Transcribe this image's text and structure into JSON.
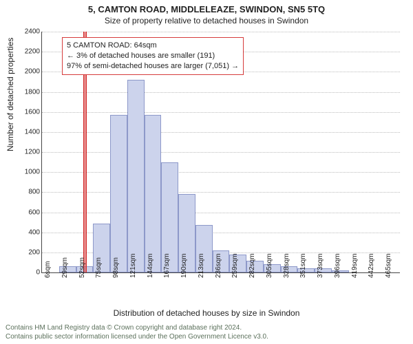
{
  "header": {
    "title": "5, CAMTON ROAD, MIDDLELEAZE, SWINDON, SN5 5TQ",
    "subtitle": "Size of property relative to detached houses in Swindon"
  },
  "axes": {
    "ylabel": "Number of detached properties",
    "xlabel": "Distribution of detached houses by size in Swindon",
    "ymax": 2400,
    "ytick_step": 200,
    "yticks": [
      0,
      200,
      400,
      600,
      800,
      1000,
      1200,
      1400,
      1600,
      1800,
      2000,
      2200,
      2400
    ],
    "x_start": 6,
    "x_step": 23,
    "x_count": 21,
    "x_unit": "sqm",
    "xticks": [
      "6sqm",
      "29sqm",
      "52sqm",
      "75sqm",
      "98sqm",
      "121sqm",
      "144sqm",
      "167sqm",
      "190sqm",
      "213sqm",
      "236sqm",
      "259sqm",
      "282sqm",
      "305sqm",
      "328sqm",
      "351sqm",
      "373sqm",
      "396sqm",
      "419sqm",
      "442sqm",
      "465sqm"
    ]
  },
  "chart": {
    "type": "histogram",
    "bar_fill": "#ccd3ec",
    "bar_border": "#8d98c9",
    "grid_color": "#bbbbbb",
    "axis_color": "#444444",
    "background": "#ffffff",
    "values": [
      0,
      60,
      60,
      490,
      1570,
      1920,
      1570,
      1100,
      780,
      470,
      220,
      180,
      120,
      80,
      60,
      40,
      40,
      20,
      0,
      0,
      0
    ],
    "marker": {
      "value_sqm": 64,
      "color": "#d63b3b"
    }
  },
  "infobox": {
    "line1": "5 CAMTON ROAD: 64sqm",
    "line2": "← 3% of detached houses are smaller (191)",
    "line3": "97% of semi-detached houses are larger (7,051) →",
    "border_color": "#d63b3b"
  },
  "footer": {
    "line1": "Contains HM Land Registry data © Crown copyright and database right 2024.",
    "line2": "Contains public sector information licensed under the Open Government Licence v3.0."
  }
}
